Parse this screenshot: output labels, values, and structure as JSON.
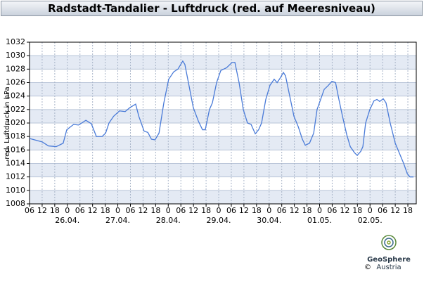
{
  "chart_data": {
    "type": "line",
    "title": "Radstadt-Tandalier - Luftdruck (red. auf Meeresniveau)",
    "y_label": "red. Luftdruck in hPa",
    "color": "#4a7bd8",
    "x": [
      6,
      12,
      15,
      18.7,
      22,
      23.7,
      27,
      29.3,
      32.8,
      35.4,
      37.8,
      40.5,
      42.2,
      43.8,
      46,
      48.8,
      51.5,
      53.8,
      56.5,
      58,
      60.5,
      62.3,
      64,
      65.7,
      67.6,
      69.9,
      72.2,
      74.6,
      76.6,
      78.9,
      79.9,
      81.6,
      83.9,
      86.3,
      88.3,
      89.6,
      91.6,
      93,
      95,
      97,
      99.7,
      102.4,
      103.7,
      105.7,
      107.7,
      109.7,
      111.4,
      113.4,
      115,
      116.4,
      118.4,
      120.4,
      122.4,
      123.8,
      125.1,
      126.8,
      127.8,
      129.8,
      131.8,
      133.8,
      135.8,
      137.2,
      139.2,
      141.2,
      142.8,
      144.5,
      146.2,
      147.9,
      149.9,
      151.6,
      153.2,
      154.9,
      156.9,
      158.6,
      160.6,
      161.9,
      163.6,
      164.6,
      165.9,
      167.9,
      169.9,
      171.3,
      172.6,
      174.3,
      175.6,
      177.6,
      180,
      182,
      184,
      185.7,
      187,
      188.7
    ],
    "values": [
      1017.7,
      1017.2,
      1016.6,
      1016.5,
      1017,
      1019,
      1019.8,
      1019.7,
      1020.4,
      1019.9,
      1018,
      1018,
      1018.5,
      1020,
      1021,
      1021.8,
      1021.7,
      1022.3,
      1022.8,
      1021,
      1018.8,
      1018.6,
      1017.6,
      1017.5,
      1018.5,
      1023,
      1026.5,
      1027.6,
      1028,
      1029.2,
      1028.7,
      1026,
      1022.3,
      1020.3,
      1019,
      1019,
      1022,
      1023,
      1026,
      1027.8,
      1028.2,
      1029,
      1029,
      1026,
      1022,
      1020,
      1019.8,
      1018.4,
      1019,
      1020,
      1023.5,
      1025.6,
      1026.5,
      1026,
      1026.6,
      1027.5,
      1027,
      1024,
      1021,
      1019.5,
      1017.6,
      1016.7,
      1017,
      1018.5,
      1022,
      1023.5,
      1025,
      1025.5,
      1026.2,
      1026,
      1023.5,
      1021,
      1018.3,
      1016.5,
      1015.6,
      1015.2,
      1015.8,
      1016.5,
      1020,
      1022,
      1023.3,
      1023.5,
      1023.2,
      1023.6,
      1023,
      1020,
      1017,
      1015.5,
      1014,
      1012.5,
      1012,
      1012
    ],
    "xlim": [
      6,
      190
    ],
    "xticks": [
      {
        "value": 6,
        "label": "06"
      },
      12,
      18,
      {
        "value": 24,
        "label": "0"
      },
      {
        "value": 30,
        "label": "06"
      },
      {
        "value": 36,
        "label": "12"
      },
      {
        "value": 42,
        "label": "18"
      },
      {
        "value": 48,
        "label": "0"
      },
      {
        "value": 54,
        "label": "06"
      },
      {
        "value": 60,
        "label": "12"
      },
      {
        "value": 66,
        "label": "18"
      },
      {
        "value": 72,
        "label": "0"
      },
      {
        "value": 78,
        "label": "06"
      },
      {
        "value": 84,
        "label": "12"
      },
      {
        "value": 90,
        "label": "18"
      },
      {
        "value": 96,
        "label": "0"
      },
      {
        "value": 102,
        "label": "06"
      },
      {
        "value": 108,
        "label": "12"
      },
      {
        "value": 114,
        "label": "18"
      },
      {
        "value": 120,
        "label": "0"
      },
      {
        "value": 126,
        "label": "06"
      },
      {
        "value": 132,
        "label": "12"
      },
      {
        "value": 138,
        "label": "18"
      },
      {
        "value": 144,
        "label": "0"
      },
      {
        "value": 150,
        "label": "06"
      },
      {
        "value": 156,
        "label": "12"
      },
      {
        "value": 162,
        "label": "18"
      },
      {
        "value": 168,
        "label": "0"
      },
      {
        "value": 174,
        "label": "06"
      },
      {
        "value": 180,
        "label": "12"
      },
      {
        "value": 186,
        "label": "18"
      }
    ],
    "xdates": [
      {
        "value": 24,
        "label": "26.04."
      },
      {
        "value": 48,
        "label": "27.04."
      },
      {
        "value": 72,
        "label": "28.04."
      },
      {
        "value": 96,
        "label": "29.04."
      },
      {
        "value": 120,
        "label": "30.04."
      },
      {
        "value": 144,
        "label": "01.05."
      },
      {
        "value": 168,
        "label": "02.05."
      }
    ],
    "ylim": [
      1008,
      1032
    ],
    "yticks": [
      1008,
      1010,
      1012,
      1014,
      1016,
      1018,
      1020,
      1022,
      1024,
      1026,
      1028,
      1030,
      1032
    ],
    "grid": true
  },
  "logo": {
    "name": "GeoSphere",
    "sub": "Austria",
    "copyright": "©"
  }
}
